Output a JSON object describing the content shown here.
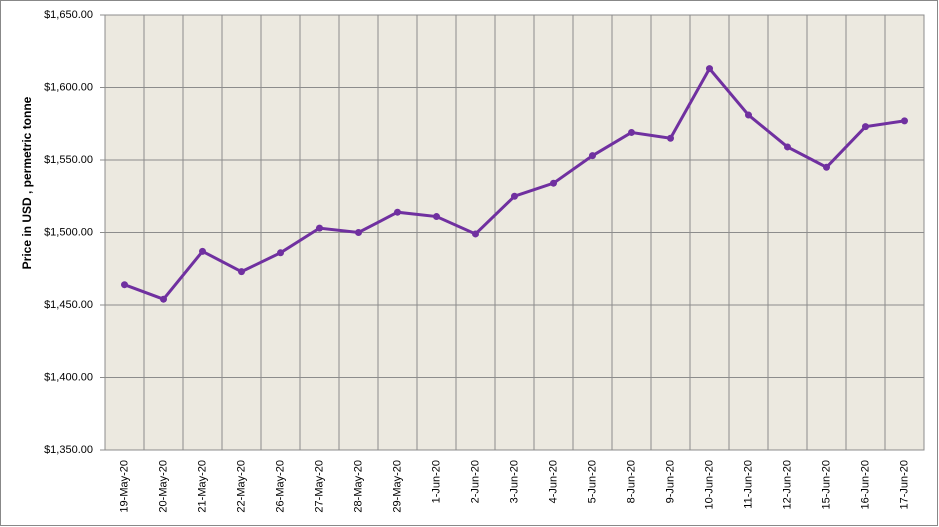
{
  "chart_data": {
    "type": "line",
    "y_label": "Price in USD , permetric tonne",
    "categories": [
      "19-May-20",
      "20-May-20",
      "21-May-20",
      "22-May-20",
      "26-May-20",
      "27-May-20",
      "28-May-20",
      "29-May-20",
      "1-Jun-20",
      "2-Jun-20",
      "3-Jun-20",
      "4-Jun-20",
      "5-Jun-20",
      "8-Jun-20",
      "9-Jun-20",
      "10-Jun-20",
      "11-Jun-20",
      "12-Jun-20",
      "15-Jun-20",
      "16-Jun-20",
      "17-Jun-20"
    ],
    "series": [
      {
        "name": "Price",
        "color": "#7030a0",
        "values": [
          1464,
          1454,
          1487,
          1473,
          1486,
          1503,
          1500,
          1514,
          1511,
          1499,
          1525,
          1534,
          1553,
          1569,
          1565,
          1613,
          1581,
          1559,
          1545,
          1573,
          1577
        ]
      }
    ],
    "ylim": [
      1350,
      1650
    ],
    "yticks": [
      {
        "value": 1350,
        "label": "$1,350.00"
      },
      {
        "value": 1400,
        "label": "$1,400.00"
      },
      {
        "value": 1450,
        "label": "$1,450.00"
      },
      {
        "value": 1500,
        "label": "$1,500.00"
      },
      {
        "value": 1550,
        "label": "$1,550.00"
      },
      {
        "value": 1600,
        "label": "$1,600.00"
      },
      {
        "value": 1650,
        "label": "$1,650.00"
      }
    ],
    "grid": true,
    "background": "#ece9e0"
  }
}
